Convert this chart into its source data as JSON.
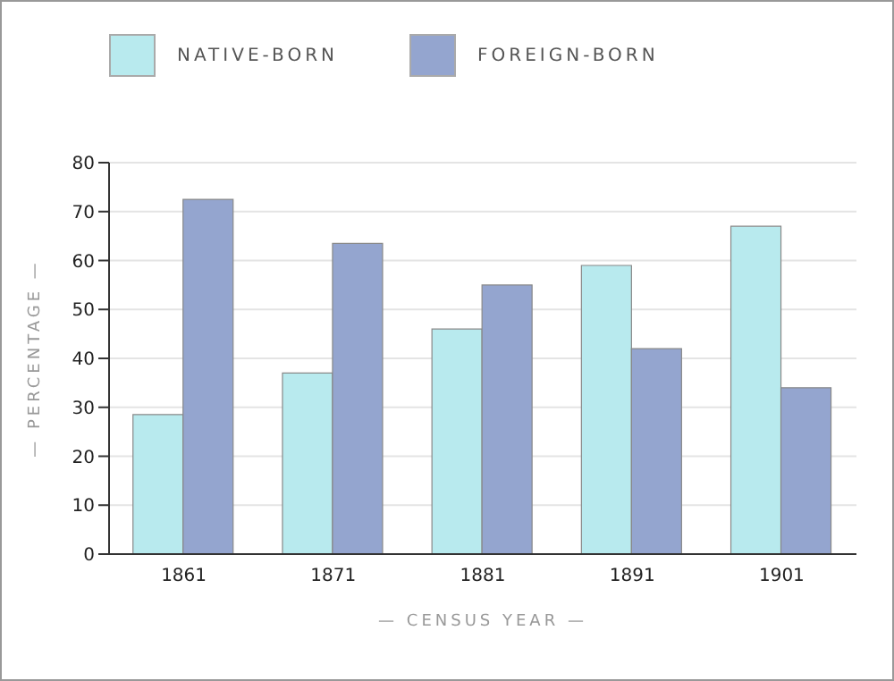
{
  "chart_data": {
    "type": "bar",
    "xlabel": "— CENSUS YEAR —",
    "ylabel": "— PERCENTAGE —",
    "categories": [
      "1861",
      "1871",
      "1881",
      "1891",
      "1901"
    ],
    "series": [
      {
        "name": "NATIVE-BORN",
        "color": "#b8eaee",
        "values": [
          28.5,
          37,
          46,
          59,
          67
        ]
      },
      {
        "name": "FOREIGN-BORN",
        "color": "#94a5cf",
        "values": [
          72.5,
          63.5,
          55,
          42,
          34
        ]
      }
    ],
    "ylim": [
      0,
      80
    ],
    "yticks": [
      0,
      10,
      20,
      30,
      40,
      50,
      60,
      70,
      80
    ],
    "grid": "y",
    "legend": "top left"
  }
}
